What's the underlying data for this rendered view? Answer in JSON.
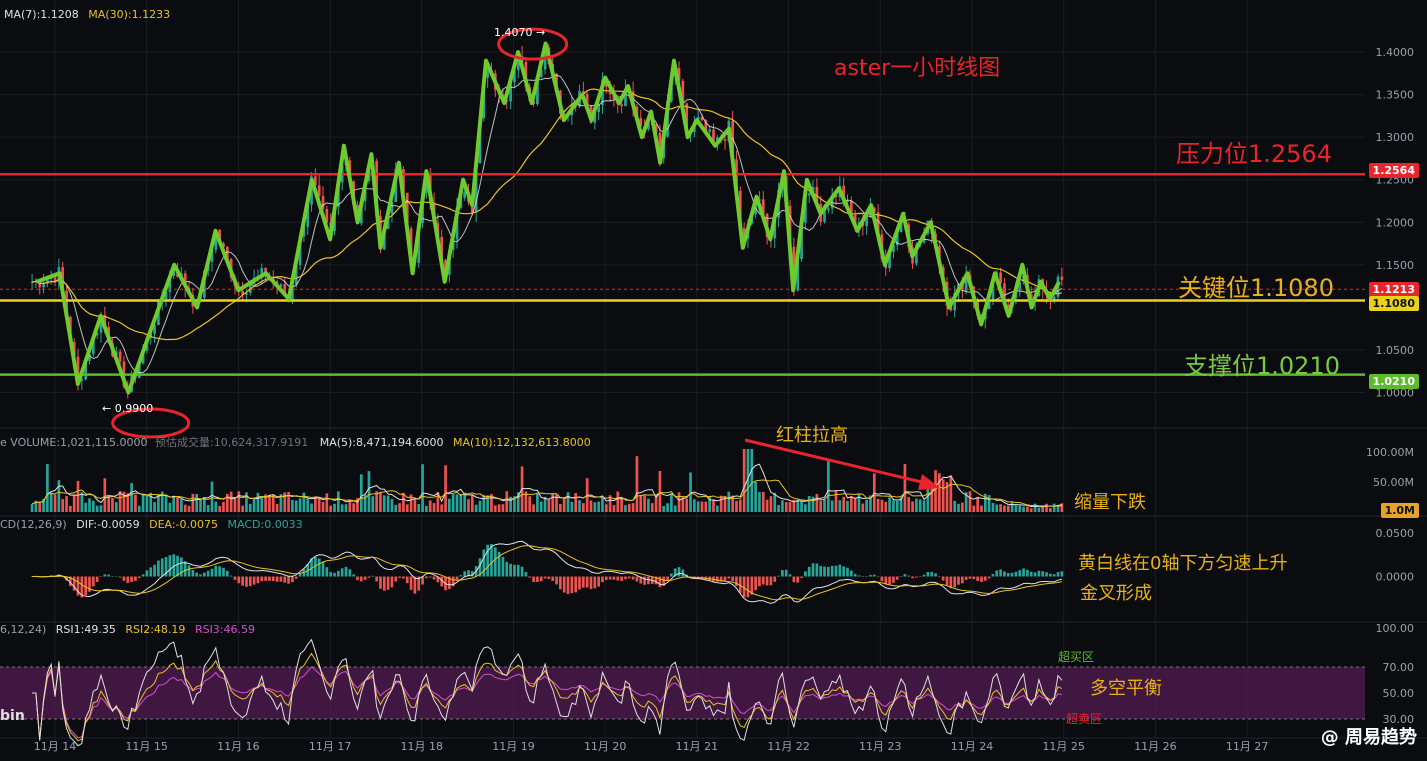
{
  "header": {
    "ma7": "MA(7):1.1208",
    "ma30": "MA(30):1.1233"
  },
  "volume_header": {
    "volume": "VOLUME:1,021,115.0000",
    "forecast": "预估成交量:10,624,317.9191",
    "ma5": "MA(5):8,471,194.6000",
    "ma10": "MA(10):12,132,613.8000"
  },
  "macd_header": {
    "name": "CD(12,26,9)",
    "dif": "DIF:-0.0059",
    "dea": "DEA:-0.0075",
    "macd": "MACD:0.0033"
  },
  "rsi_header": {
    "name": "6,12,24)",
    "rsi1": "RSI1:49.35",
    "rsi2": "RSI2:48.19",
    "rsi3": "RSI3:46.59"
  },
  "annotations": {
    "title": "aster一小时线图",
    "resistance": "压力位1.2564",
    "key": "关键位1.1080",
    "support": "支撑位1.0210",
    "red_bars": "红柱拉高",
    "shrink": "缩量下跌",
    "macd_note1": "黄白线在0轴下方匀速上升",
    "macd_note2": "金叉形成",
    "balance": "多空平衡",
    "overbought": "超买区",
    "oversold": "超卖区",
    "high_marker": "1.4070 →",
    "low_marker": "← 0.9900",
    "bin": "bin",
    "watermark": "@ 周易趋势"
  },
  "price_tags": {
    "resistance": "1.2564",
    "current": "1.1213",
    "key": "1.1080",
    "support": "1.0210",
    "volume": "1.0M"
  },
  "colors": {
    "background": "#0b0c0f",
    "grid": "#1b1d22",
    "up": "#26a69a",
    "down": "#ef5350",
    "green_line": "#6ecb2d",
    "resistance": "#e8242c",
    "key": "#e8d319",
    "support": "#5bbb2c",
    "ma7": "#e0e0e0",
    "ma30": "#e6c229",
    "rsi_zone": "#4a1a4a",
    "rsi3": "#d44fd0"
  },
  "chart_data": {
    "type": "line",
    "instrument": "aster",
    "timeframe": "1h",
    "x_axis_dates": [
      "11月 14",
      "11月 15",
      "11月 16",
      "11月 17",
      "11月 18",
      "11月 19",
      "11月 20",
      "11月 21",
      "11月 22",
      "11月 23",
      "11月 24",
      "11月 25",
      "11月 26",
      "11月 27"
    ],
    "price_ticks": [
      "1.4000",
      "1.3500",
      "1.3000",
      "1.2500",
      "1.2000",
      "1.1500",
      "1.0500",
      "1.0000"
    ],
    "price_ylim": [
      0.97,
      1.44
    ],
    "volume_ticks": [
      "100.00M",
      "50.00M"
    ],
    "volume_ylim": [
      0,
      120
    ],
    "macd_ticks": [
      "0.0500",
      "0.0000"
    ],
    "macd_ylim": [
      -0.05,
      0.065
    ],
    "rsi_ticks": [
      "100.00",
      "70.00",
      "50.00",
      "30.00"
    ],
    "rsi_ylim": [
      20,
      100
    ],
    "levels": {
      "resistance": 1.2564,
      "key": 1.108,
      "support": 1.021,
      "current": 1.1213
    },
    "swing_series": {
      "name": "",
      "x": [
        13.8,
        14.05,
        14.25,
        14.5,
        14.8,
        15.0,
        15.3,
        15.55,
        15.75,
        16.0,
        16.3,
        16.55,
        16.8,
        17.0,
        17.15,
        17.3,
        17.45,
        17.55,
        17.75,
        17.9,
        18.05,
        18.25,
        18.45,
        18.55,
        18.7,
        18.9,
        19.05,
        19.2,
        19.35,
        19.55,
        19.75,
        19.85,
        20.0,
        20.15,
        20.25,
        20.4,
        20.5,
        20.6,
        20.75,
        20.9,
        21.0,
        21.2,
        21.35,
        21.5,
        21.65,
        21.8,
        21.95,
        22.05,
        22.2,
        22.35,
        22.55,
        22.75,
        22.9,
        23.05,
        23.25,
        23.35,
        23.55,
        23.75,
        23.95,
        24.1,
        24.25,
        24.4,
        24.55,
        24.65,
        24.75,
        24.85,
        24.95
      ],
      "y": [
        1.13,
        1.14,
        1.01,
        1.09,
        1.0,
        1.06,
        1.15,
        1.1,
        1.19,
        1.12,
        1.14,
        1.11,
        1.25,
        1.18,
        1.29,
        1.2,
        1.28,
        1.17,
        1.27,
        1.14,
        1.26,
        1.13,
        1.25,
        1.22,
        1.39,
        1.34,
        1.4,
        1.34,
        1.41,
        1.32,
        1.35,
        1.32,
        1.37,
        1.34,
        1.36,
        1.3,
        1.33,
        1.27,
        1.39,
        1.3,
        1.32,
        1.29,
        1.31,
        1.17,
        1.23,
        1.18,
        1.26,
        1.12,
        1.25,
        1.21,
        1.24,
        1.19,
        1.22,
        1.15,
        1.21,
        1.16,
        1.2,
        1.1,
        1.14,
        1.08,
        1.14,
        1.09,
        1.15,
        1.1,
        1.13,
        1.11,
        1.13
      ]
    },
    "extremes": {
      "high": 1.407,
      "low": 0.99
    },
    "rsi": {
      "rsi1": 49.35,
      "rsi2": 48.19,
      "rsi3": 46.59,
      "overbought": 70,
      "oversold": 30
    },
    "macd": {
      "dif": -0.0059,
      "dea": -0.0075,
      "macd": 0.0033
    }
  }
}
